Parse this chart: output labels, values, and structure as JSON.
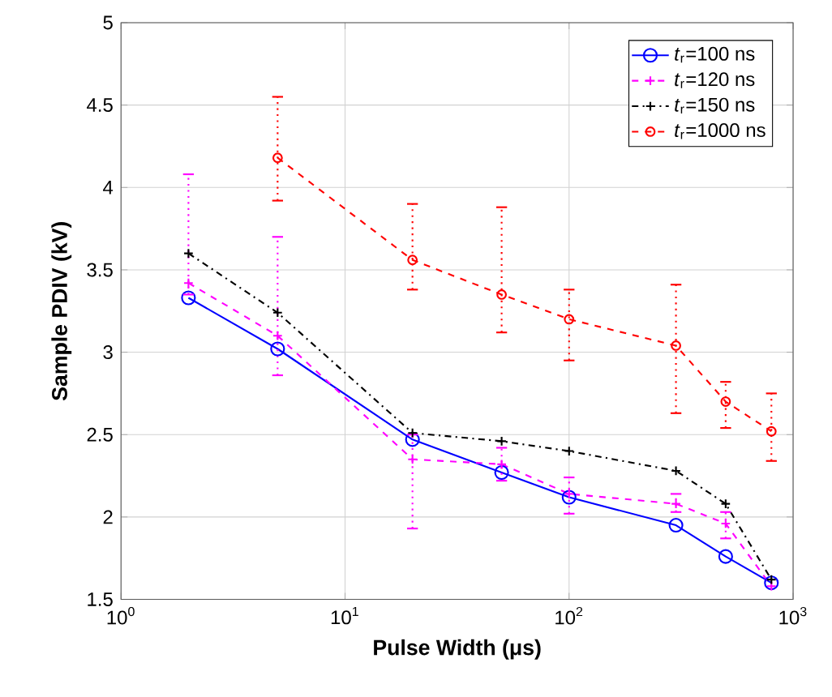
{
  "chart_data": {
    "type": "line",
    "xlabel": "Pulse Width (μs)",
    "ylabel": "Sample PDIV (kV)",
    "log": "x",
    "grid": true,
    "legend": "top right",
    "xlim": [
      1,
      1000
    ],
    "ylim": [
      1.5,
      5
    ],
    "xticks": [
      {
        "value": 1,
        "label": "10$^{0}$"
      },
      {
        "value": 10,
        "label": "10$^{1}$"
      },
      {
        "value": 100,
        "label": "10$^{2}$"
      },
      {
        "value": 1000,
        "label": "10$^{3}$"
      }
    ],
    "yticks": [
      1.5,
      2,
      2.5,
      3,
      3.5,
      4,
      4.5,
      5
    ],
    "series": [
      {
        "name": "*t*$_{r}$=100 ns",
        "color": "#0000ff",
        "marker": "circle",
        "line_style": "solid",
        "x": [
          2,
          5,
          20,
          50,
          100,
          300,
          500,
          800
        ],
        "values": [
          3.33,
          3.02,
          2.47,
          2.27,
          2.12,
          1.95,
          1.76,
          1.6
        ]
      },
      {
        "name": "*t*$_{r}$=120 ns",
        "color": "#ff00ff",
        "marker": "cross",
        "line_style": "dashed",
        "x": [
          2,
          5,
          20,
          50,
          100,
          300,
          500,
          800
        ],
        "values": [
          3.42,
          3.1,
          2.35,
          2.32,
          2.14,
          2.08,
          1.96,
          1.58
        ],
        "errors": [
          [
            3.35,
            4.08
          ],
          [
            2.86,
            3.7
          ],
          [
            1.93,
            2.5
          ],
          [
            2.22,
            2.42
          ],
          [
            2.02,
            2.24
          ],
          [
            2.03,
            2.14
          ],
          [
            1.87,
            2.03
          ],
          null
        ]
      },
      {
        "name": "*t*$_{r}$=150 ns",
        "color": "#000000",
        "marker": "cross",
        "line_style": "dashed",
        "x": [
          2,
          5,
          20,
          50,
          100,
          300,
          500,
          800
        ],
        "values": [
          3.6,
          3.24,
          2.51,
          2.46,
          2.4,
          2.28,
          2.08,
          1.62
        ]
      },
      {
        "name": "*t*$_{r}$=1000 ns",
        "color": "#ff0000",
        "marker": "circle",
        "line_style": "dashed",
        "x": [
          5,
          20,
          50,
          100,
          300,
          500,
          800
        ],
        "values": [
          4.18,
          3.56,
          3.35,
          3.2,
          3.04,
          2.7,
          2.52
        ],
        "errors": [
          [
            3.92,
            4.55
          ],
          [
            3.38,
            3.9
          ],
          [
            3.12,
            3.88
          ],
          [
            2.95,
            3.38
          ],
          [
            2.63,
            3.41
          ],
          [
            2.54,
            2.82
          ],
          [
            2.34,
            2.75
          ]
        ]
      }
    ]
  }
}
